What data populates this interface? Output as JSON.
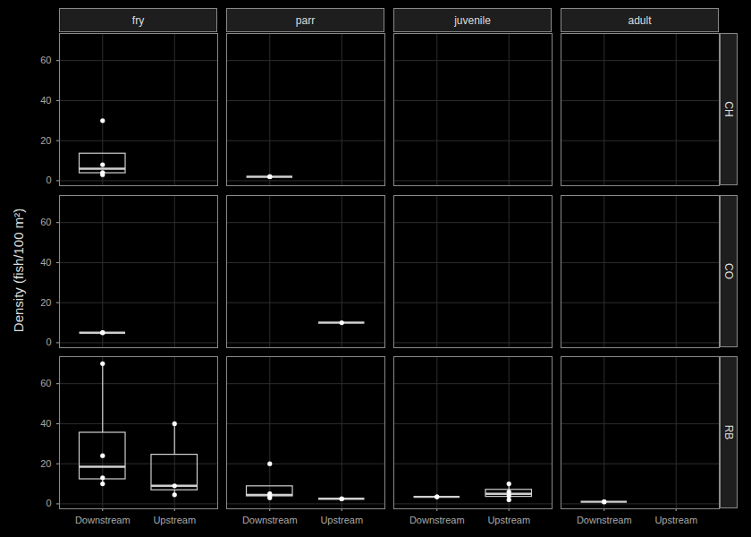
{
  "chart_data": {
    "type": "boxplot",
    "y_label": "Density (fish/100 m²)",
    "x_categories": [
      "Downstream",
      "Upstream"
    ],
    "facet_columns": [
      "fry",
      "parr",
      "juvenile",
      "adult"
    ],
    "facet_rows": [
      "CH",
      "CO",
      "RB"
    ],
    "ylim": [
      -2.5,
      73.5
    ],
    "yticks": [
      0,
      20,
      40,
      60
    ],
    "grid": true,
    "color": "#ffffff",
    "groups": [
      {
        "row": "CH",
        "column": "fry",
        "category": "Downstream",
        "values": [
          3,
          4,
          8,
          30
        ]
      },
      {
        "row": "CH",
        "column": "parr",
        "category": "Downstream",
        "values": [
          2,
          2
        ]
      },
      {
        "row": "CO",
        "column": "fry",
        "category": "Downstream",
        "values": [
          5,
          5
        ]
      },
      {
        "row": "CO",
        "column": "parr",
        "category": "Upstream",
        "values": [
          10
        ]
      },
      {
        "row": "RB",
        "column": "fry",
        "category": "Downstream",
        "values": [
          10,
          13,
          24,
          70
        ]
      },
      {
        "row": "RB",
        "column": "fry",
        "category": "Upstream",
        "values": [
          4.5,
          9,
          40
        ]
      },
      {
        "row": "RB",
        "column": "parr",
        "category": "Downstream",
        "values": [
          3,
          4,
          5,
          20
        ]
      },
      {
        "row": "RB",
        "column": "parr",
        "category": "Upstream",
        "values": [
          2.5,
          2.5,
          2.5
        ]
      },
      {
        "row": "RB",
        "column": "juvenile",
        "category": "Downstream",
        "values": [
          3.5,
          3.5
        ]
      },
      {
        "row": "RB",
        "column": "juvenile",
        "category": "Upstream",
        "values": [
          2,
          4,
          6,
          10
        ]
      },
      {
        "row": "RB",
        "column": "adult",
        "category": "Downstream",
        "values": [
          1,
          1
        ]
      }
    ]
  }
}
